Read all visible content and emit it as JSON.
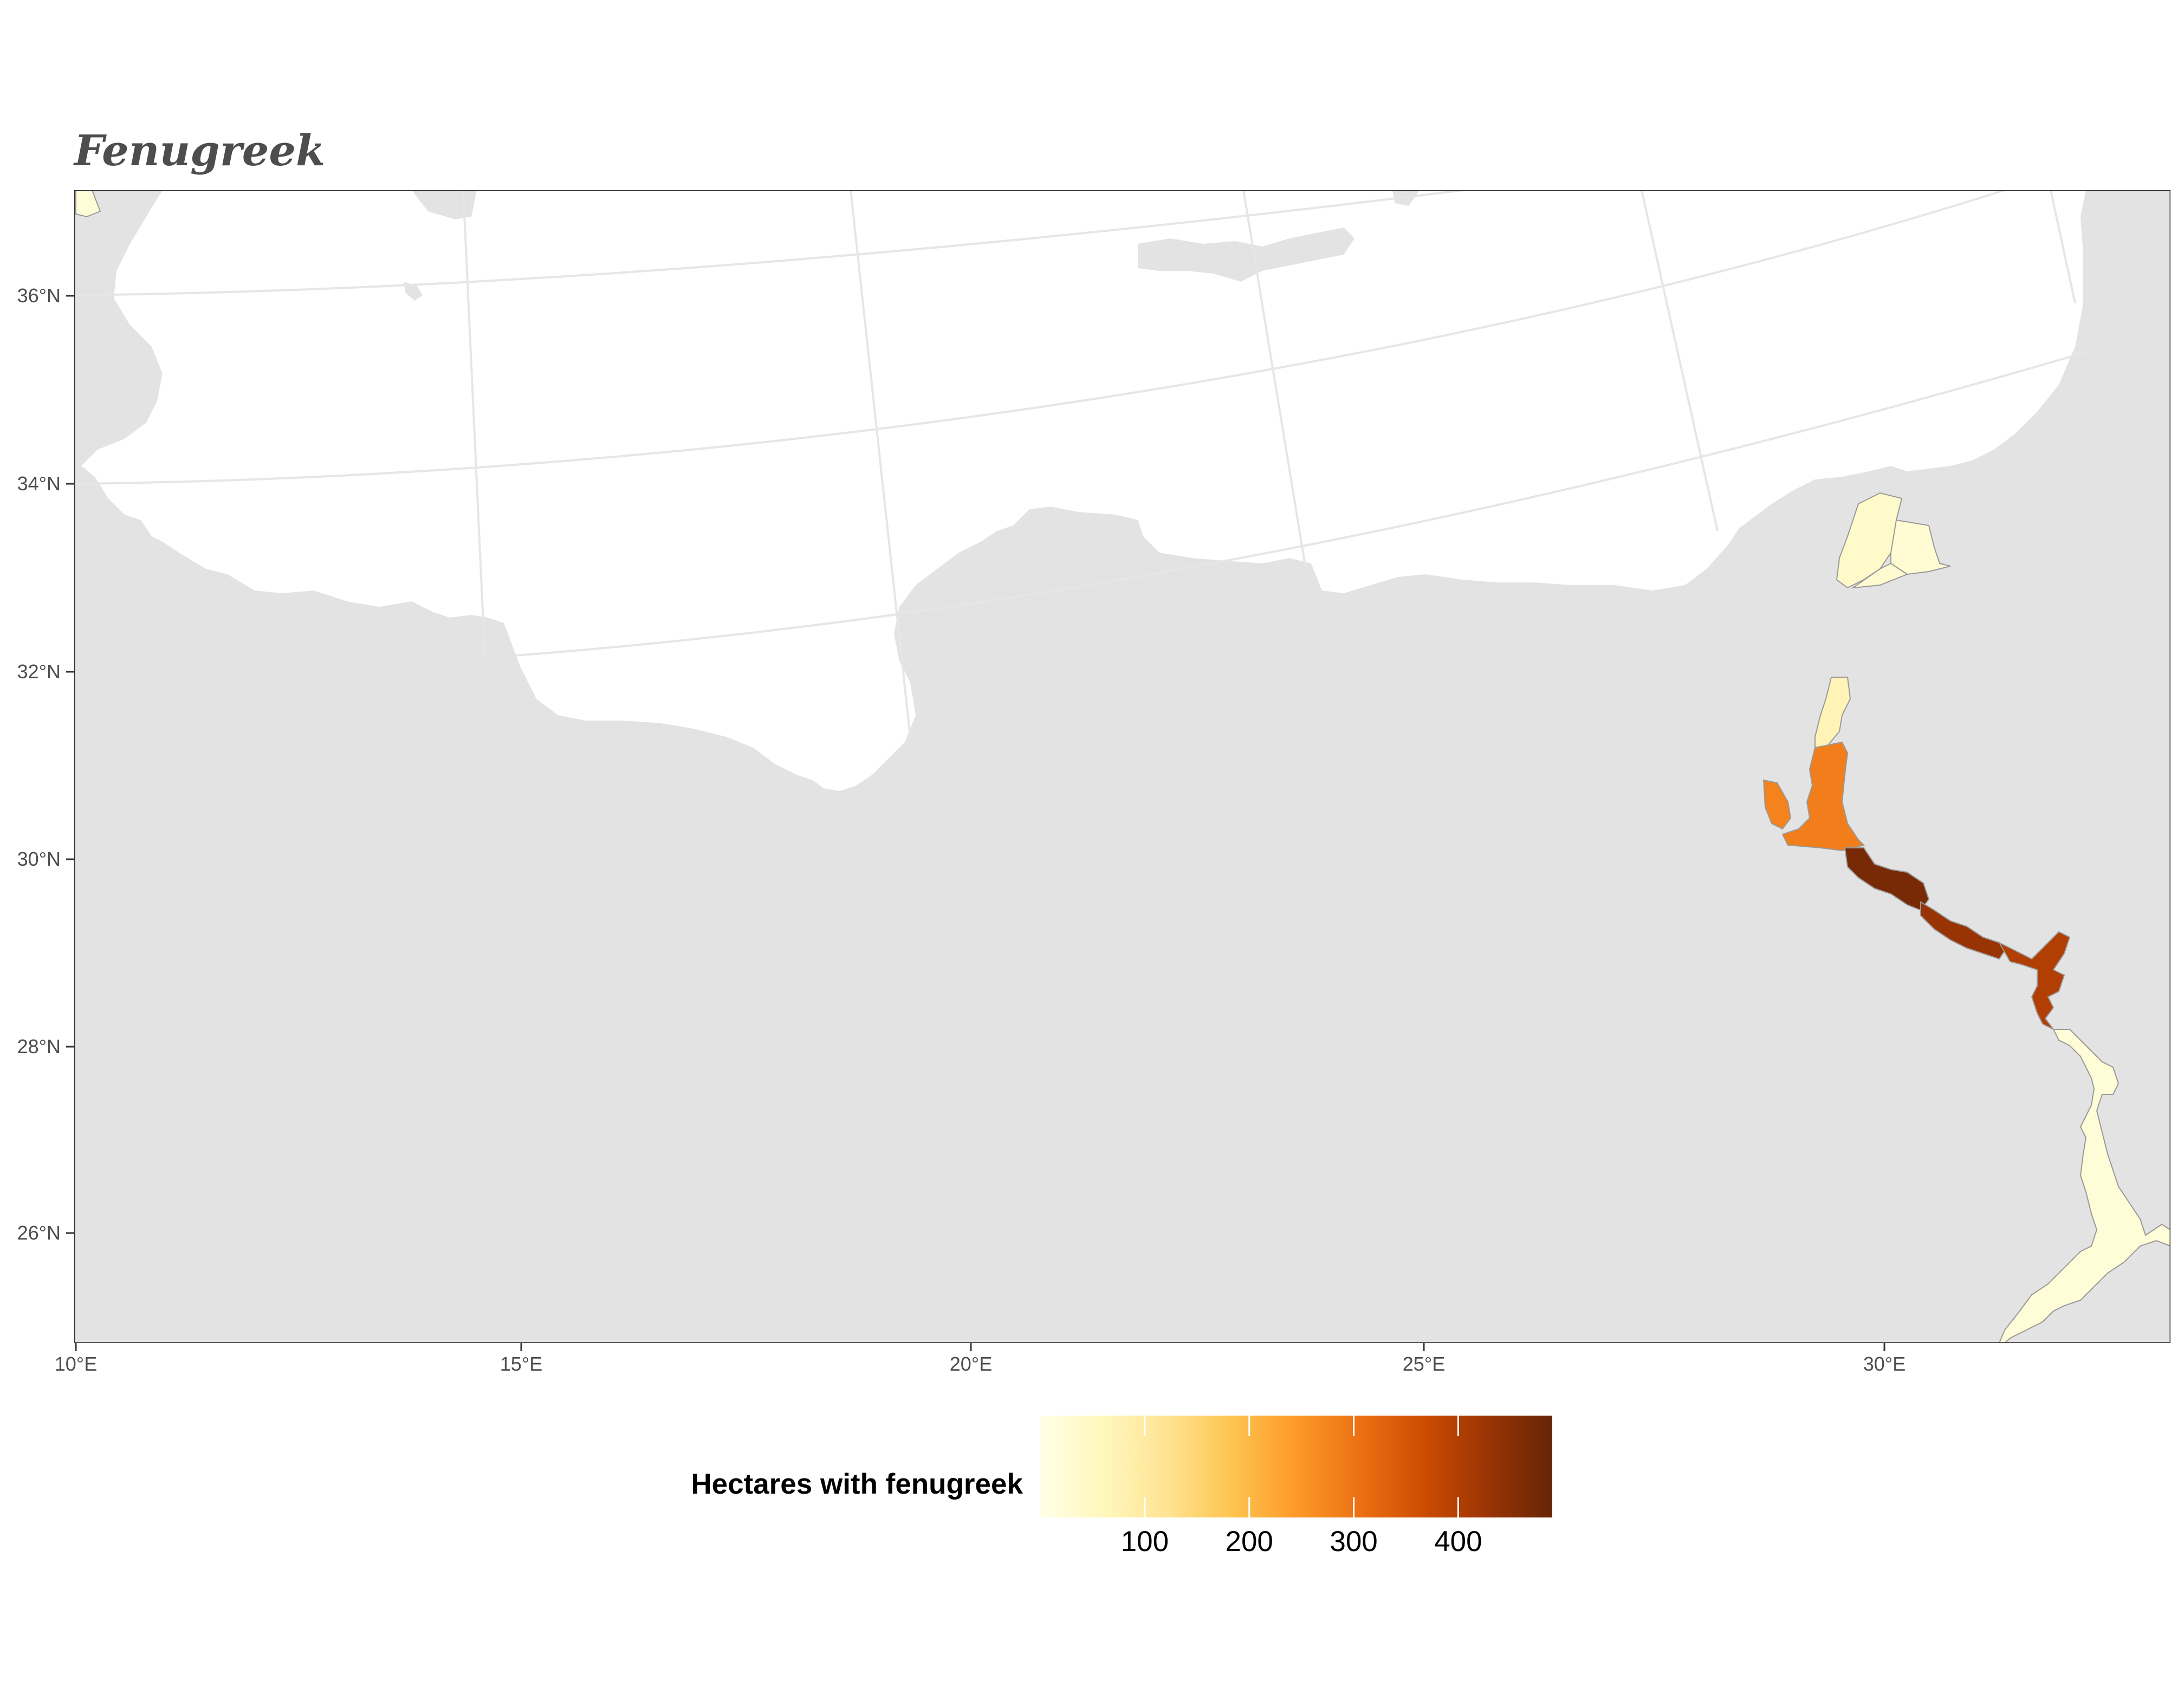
{
  "title": "Fenugreek",
  "axes": {
    "x_ticks": [
      "10°E",
      "15°E",
      "20°E",
      "25°E",
      "30°E"
    ],
    "y_ticks": [
      "36°N",
      "34°N",
      "32°N",
      "30°N",
      "28°N",
      "26°N"
    ]
  },
  "legend": {
    "title": "Hectares with fenugreek",
    "ticks": [
      "100",
      "200",
      "300",
      "400"
    ],
    "tick_values": [
      100,
      200,
      300,
      400
    ],
    "range": [
      0,
      490
    ],
    "placement": "bottom",
    "colors": [
      "#ffffe5",
      "#fff7bc",
      "#fee391",
      "#fec44f",
      "#fe9929",
      "#ec7014",
      "#cc4c02",
      "#993404",
      "#662506"
    ]
  },
  "colors": {
    "sea": "#ffffff",
    "land": "#e3e3e3",
    "graticule": "#e6e6e6",
    "frame": "#333333"
  },
  "regions": [
    {
      "name": "nile-delta-north",
      "value": 40
    },
    {
      "name": "nile-delta-central",
      "value": 25
    },
    {
      "name": "nile-delta-east",
      "value": 30
    },
    {
      "name": "delta-strip",
      "value": 70
    },
    {
      "name": "cairo-giza",
      "value": 285
    },
    {
      "name": "faiyum",
      "value": 280
    },
    {
      "name": "beni-suef",
      "value": 470
    },
    {
      "name": "minya",
      "value": 430
    },
    {
      "name": "asyut",
      "value": 400
    },
    {
      "name": "upper-egypt",
      "value": 20
    }
  ]
}
